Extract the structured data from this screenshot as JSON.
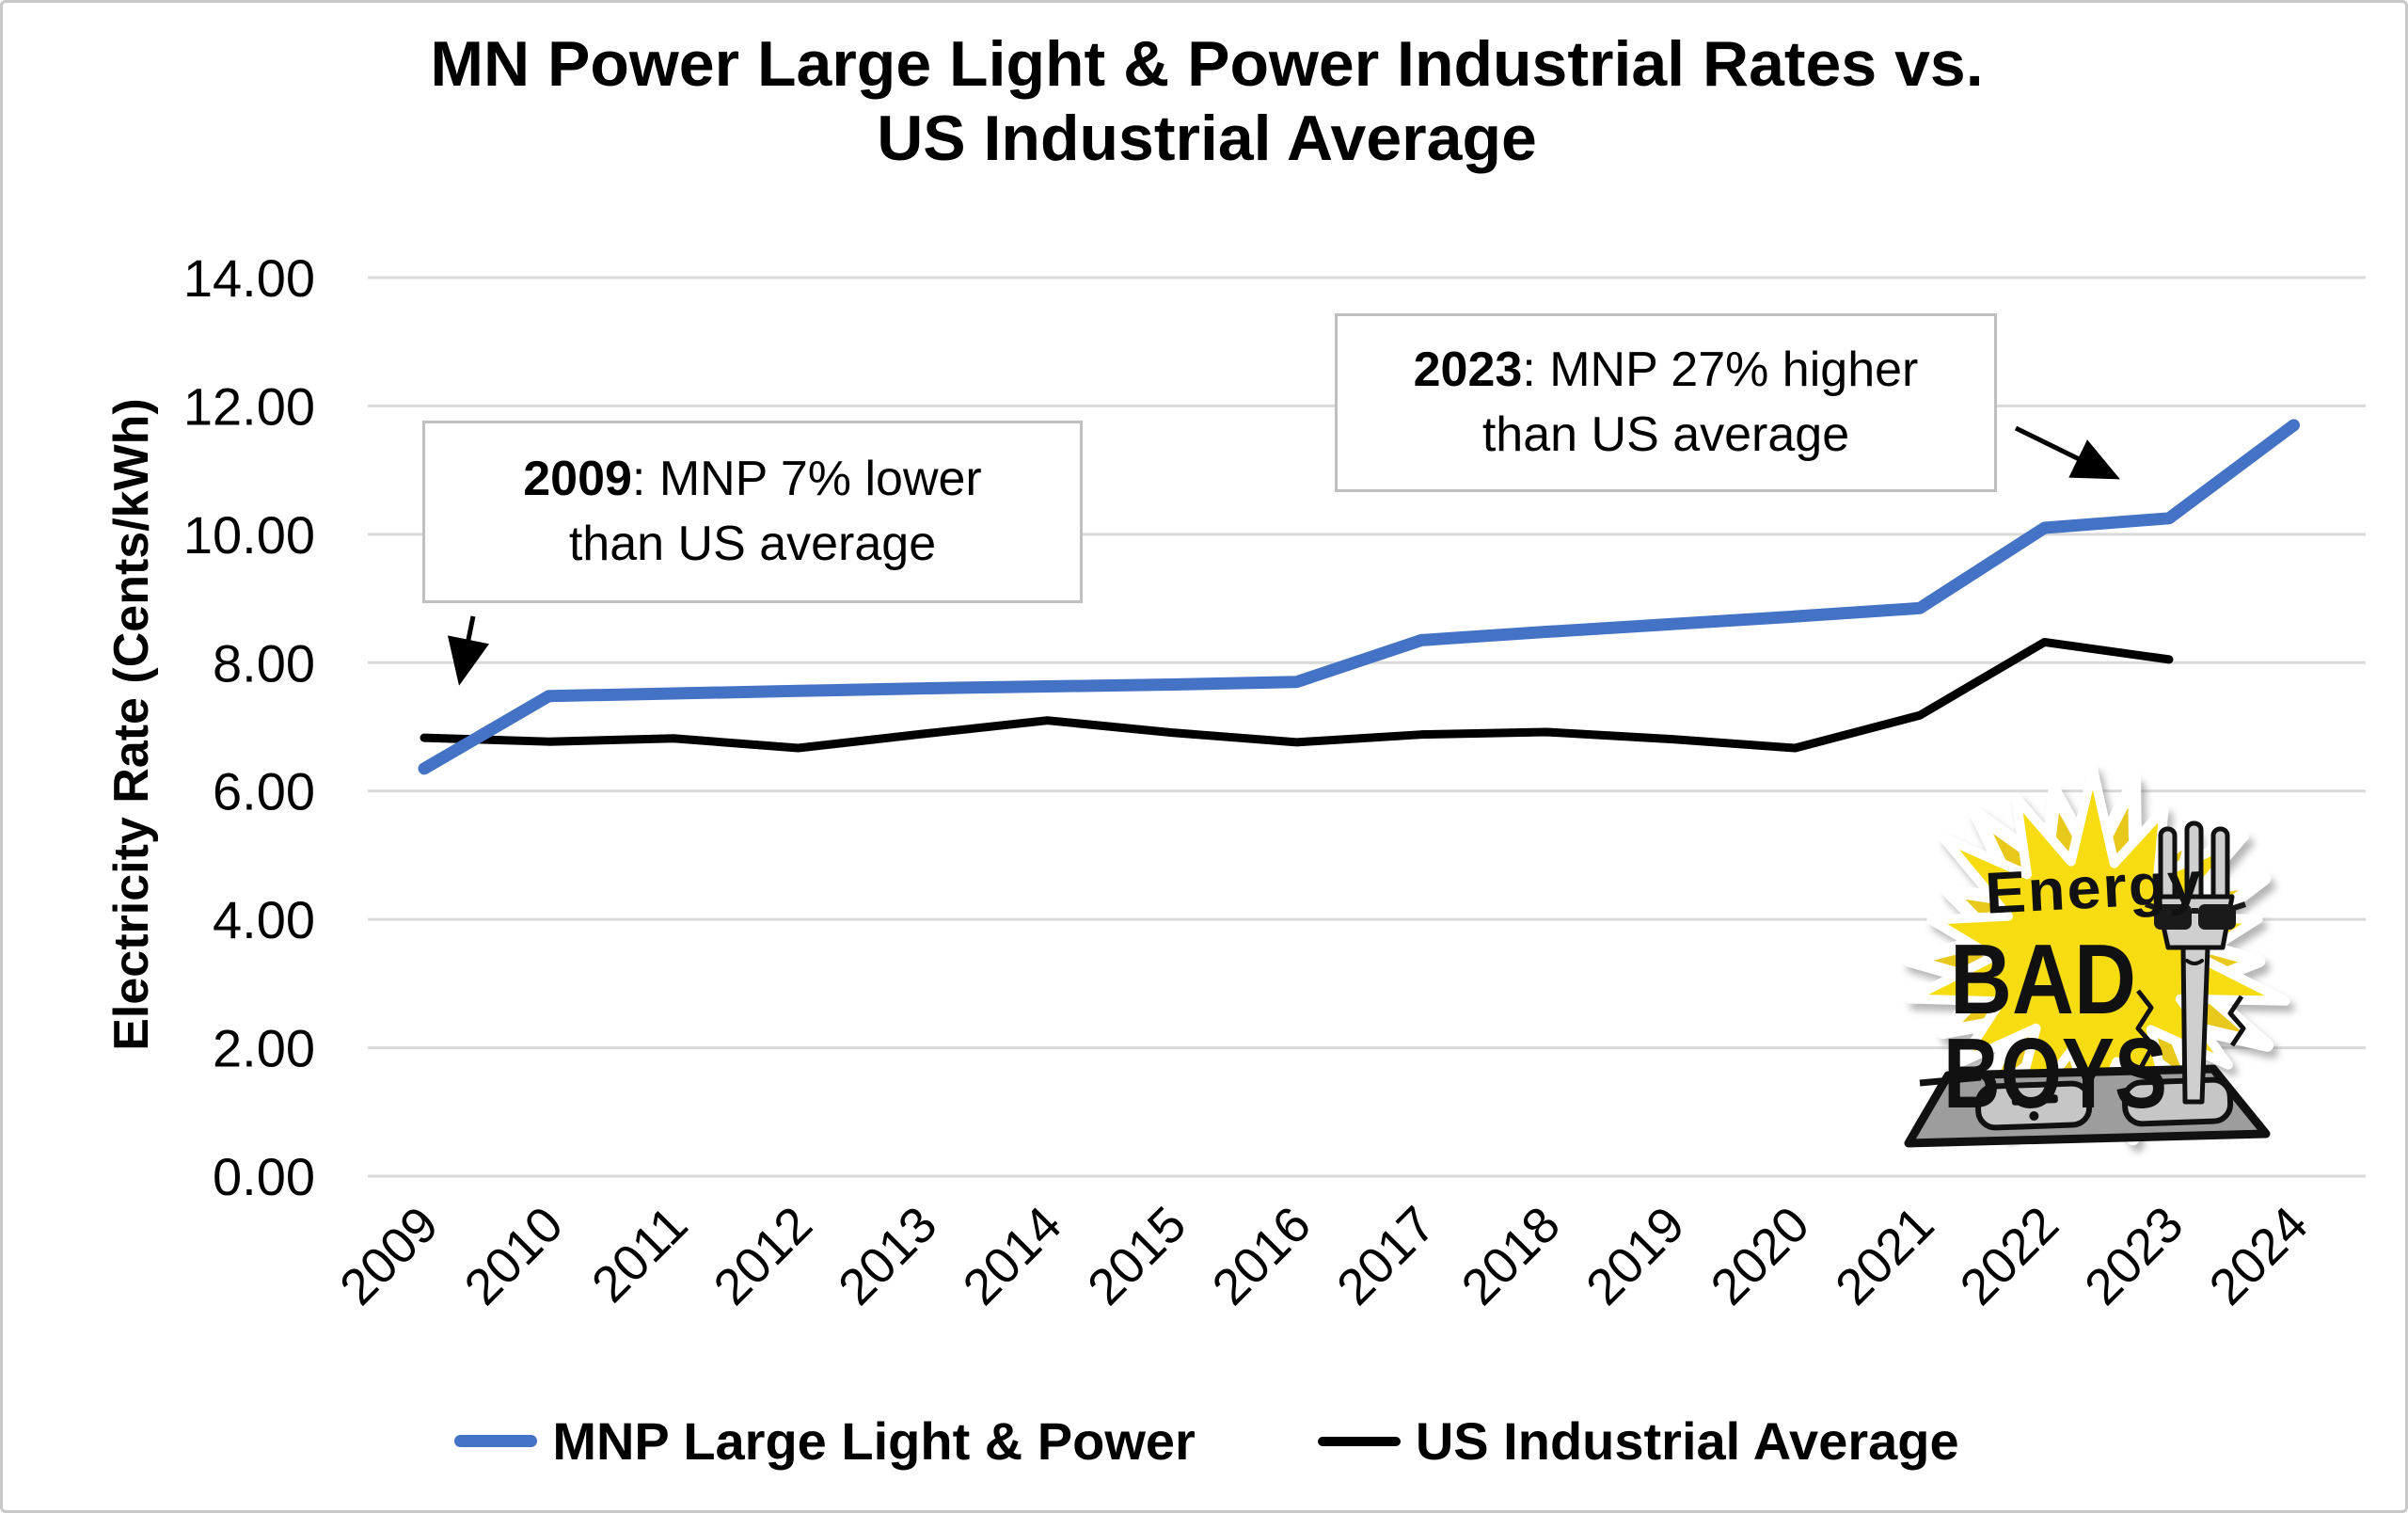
{
  "page": {
    "background": "#ffffff",
    "border_color": "#c8c8c8"
  },
  "chart_data": {
    "type": "line",
    "title_line1": "MN Power Large Light & Power Industrial Rates vs.",
    "title_line2": "US Industrial Average",
    "ylabel": "Electricity Rate (Cents/kWh)",
    "xlabel": "",
    "categories": [
      "2009",
      "2010",
      "2011",
      "2012",
      "2013",
      "2014",
      "2015",
      "2016",
      "2017",
      "2018",
      "2019",
      "2020",
      "2021",
      "2022",
      "2023",
      "2024"
    ],
    "series": [
      {
        "name": "MNP Large Light & Power",
        "color": "#4472C4",
        "stroke_width": 13,
        "values": [
          6.35,
          7.48,
          7.52,
          7.56,
          7.6,
          7.63,
          7.66,
          7.7,
          8.35,
          8.48,
          8.6,
          8.72,
          8.85,
          10.1,
          10.25,
          11.7
        ]
      },
      {
        "name": "US Industrial Average",
        "color": "#000000",
        "stroke_width": 9,
        "values": [
          6.83,
          6.77,
          6.82,
          6.67,
          6.89,
          7.1,
          6.91,
          6.76,
          6.88,
          6.92,
          6.81,
          6.67,
          7.18,
          8.32,
          8.05,
          null
        ]
      }
    ],
    "ylim": [
      0,
      14
    ],
    "ytick_step": 2,
    "ytick_labels": [
      "0.00",
      "2.00",
      "4.00",
      "6.00",
      "8.00",
      "10.00",
      "12.00",
      "14.00"
    ],
    "grid": "horizontal",
    "gridline_color": "#d9d9d9",
    "legend_position": "bottom",
    "x_label_rotation": -45
  },
  "annotations": [
    {
      "target_year": "2009",
      "line1_bold": "2009",
      "line1_rest": ": MNP 7% lower",
      "line2": "than US average"
    },
    {
      "target_year": "2023",
      "line1_bold": "2023",
      "line1_rest": ": MNP 27% higher",
      "line2": "than US average"
    }
  ],
  "logo": {
    "word1": "Energy",
    "word2": "BAD",
    "word3": "BOYS",
    "star_color": "#F7DC11",
    "star_back_color": "#E9C81C",
    "outline_color": "#ffffff"
  }
}
